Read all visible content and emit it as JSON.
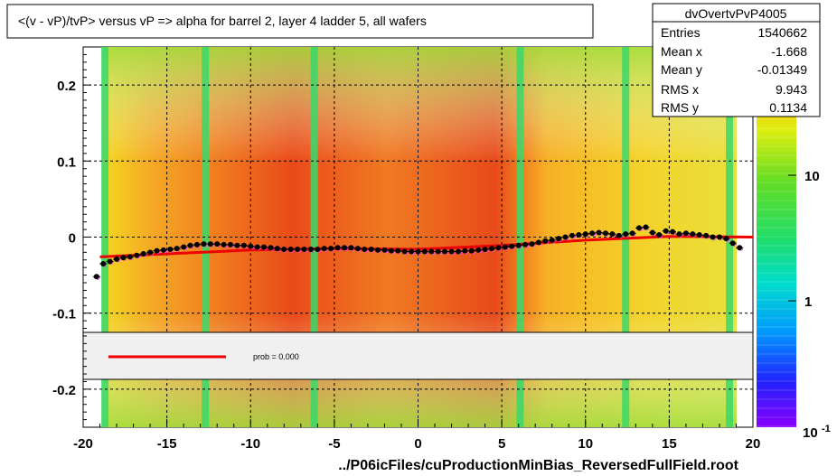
{
  "title": "<(v - vP)/tvP> versus   vP => alpha for barrel 2, layer 4 ladder 5, all wafers",
  "footer": "../P06icFiles/cuProductionMinBias_ReversedFullField.root",
  "stats": {
    "name": "dvOvertvPvP4005",
    "rows": [
      {
        "label": "Entries",
        "value": "1540662"
      },
      {
        "label": "Mean x",
        "value": "-1.668"
      },
      {
        "label": "Mean y",
        "value": "-0.01349"
      },
      {
        "label": "RMS x",
        "value": "9.943"
      },
      {
        "label": "RMS y",
        "value": "0.1134"
      }
    ]
  },
  "legend": {
    "fit_label": "prob = 0.000",
    "fit_color": "#ee0000"
  },
  "colors": {
    "marker": "#000000",
    "fit": "#ee0000",
    "secondary_marker": "#ff44ff"
  },
  "chart_data": {
    "type": "heatmap",
    "title": "<(v - vP)/tvP> versus   vP => alpha for barrel 2, layer 4 ladder 5, all wafers",
    "xlabel": "",
    "ylabel": "",
    "xlim": [
      -20,
      20
    ],
    "ylim": [
      -0.25,
      0.25
    ],
    "x_ticks": [
      -20,
      -15,
      -10,
      -5,
      0,
      5,
      10,
      15,
      20
    ],
    "x_tick_labels": [
      "-20",
      "-15",
      "-10",
      "-5",
      "0",
      "5",
      "10",
      "15",
      "20"
    ],
    "y_ticks": [
      0.2,
      0.1,
      0,
      -0.1,
      -0.2
    ],
    "y_tick_labels": [
      "0.2",
      "0.1",
      "0",
      "-0.1",
      "-0.2"
    ],
    "grid": true,
    "colorbar": {
      "scale": "log",
      "tick_labels": [
        "10",
        "1",
        "10"
      ],
      "superscript": "-1"
    },
    "profile_points": {
      "x": [
        -19.2,
        -18.8,
        -18.4,
        -18.0,
        -17.6,
        -17.2,
        -16.8,
        -16.4,
        -16.0,
        -15.6,
        -15.2,
        -14.8,
        -14.4,
        -14.0,
        -13.6,
        -13.2,
        -12.8,
        -12.4,
        -12.0,
        -11.6,
        -11.2,
        -10.8,
        -10.4,
        -10.0,
        -9.6,
        -9.2,
        -8.8,
        -8.4,
        -8.0,
        -7.6,
        -7.2,
        -6.8,
        -6.4,
        -6.0,
        -5.6,
        -5.2,
        -4.8,
        -4.4,
        -4.0,
        -3.6,
        -3.2,
        -2.8,
        -2.4,
        -2.0,
        -1.6,
        -1.2,
        -0.8,
        -0.4,
        0.0,
        0.4,
        0.8,
        1.2,
        1.6,
        2.0,
        2.4,
        2.8,
        3.2,
        3.6,
        4.0,
        4.4,
        4.8,
        5.2,
        5.6,
        6.0,
        6.4,
        6.8,
        7.2,
        7.6,
        8.0,
        8.4,
        8.8,
        9.2,
        9.6,
        10.0,
        10.4,
        10.8,
        11.2,
        11.6,
        12.0,
        12.4,
        12.8,
        13.2,
        13.6,
        14.0,
        14.4,
        14.8,
        15.2,
        15.6,
        16.0,
        16.4,
        16.8,
        17.2,
        17.6,
        18.0,
        18.4,
        18.8,
        19.2
      ],
      "y": [
        -0.052,
        -0.035,
        -0.032,
        -0.029,
        -0.027,
        -0.026,
        -0.024,
        -0.022,
        -0.02,
        -0.018,
        -0.017,
        -0.016,
        -0.015,
        -0.013,
        -0.011,
        -0.01,
        -0.009,
        -0.009,
        -0.009,
        -0.01,
        -0.01,
        -0.011,
        -0.011,
        -0.012,
        -0.013,
        -0.013,
        -0.014,
        -0.015,
        -0.016,
        -0.016,
        -0.016,
        -0.016,
        -0.016,
        -0.016,
        -0.015,
        -0.015,
        -0.014,
        -0.014,
        -0.014,
        -0.015,
        -0.016,
        -0.016,
        -0.017,
        -0.017,
        -0.018,
        -0.018,
        -0.019,
        -0.019,
        -0.019,
        -0.019,
        -0.019,
        -0.019,
        -0.019,
        -0.019,
        -0.019,
        -0.018,
        -0.018,
        -0.017,
        -0.016,
        -0.015,
        -0.014,
        -0.013,
        -0.012,
        -0.011,
        -0.01,
        -0.009,
        -0.007,
        -0.005,
        -0.004,
        -0.002,
        0.0,
        0.002,
        0.003,
        0.004,
        0.005,
        0.006,
        0.005,
        0.004,
        0.002,
        0.004,
        0.005,
        0.012,
        0.013,
        0.006,
        0.003,
        0.008,
        0.007,
        0.004,
        0.005,
        0.004,
        0.003,
        0.002,
        0.0,
        0.0,
        -0.002,
        -0.008,
        -0.014
      ]
    },
    "fit_line": {
      "x": [
        -19,
        -10,
        -5,
        0,
        5,
        10,
        15,
        20
      ],
      "y": [
        -0.026,
        -0.017,
        -0.015,
        -0.016,
        -0.011,
        -0.004,
        0.001,
        0.0
      ]
    },
    "band_columns": [
      -18.7,
      -12.7,
      -6.2,
      6.1,
      12.4,
      18.6
    ]
  }
}
